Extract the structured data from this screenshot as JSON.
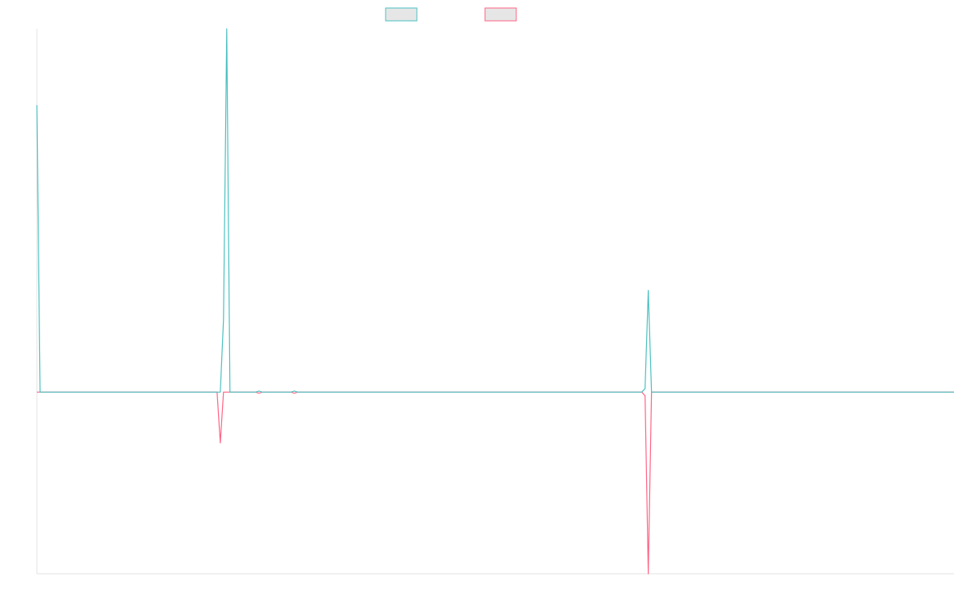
{
  "chart_data": {
    "type": "line",
    "title": "",
    "xlabel": "",
    "ylabel": "",
    "grid": false,
    "legend": "top-center",
    "x": [
      0,
      1,
      2,
      3,
      4,
      5,
      6,
      7,
      8,
      9,
      10,
      11,
      12,
      13,
      14,
      15,
      16,
      17,
      18,
      19,
      20,
      21,
      22,
      23,
      24,
      25,
      26,
      27,
      28,
      29,
      30,
      31,
      32,
      33,
      34,
      35,
      36,
      37,
      38,
      39,
      40,
      41,
      42,
      43,
      44,
      45,
      46,
      47,
      48,
      49,
      50,
      51,
      52,
      53,
      54,
      55,
      56,
      57,
      58,
      59,
      60,
      61,
      62,
      63,
      64,
      65,
      66,
      67,
      68,
      69,
      70,
      71,
      72,
      73,
      74,
      75,
      76,
      77,
      78,
      79,
      80,
      81,
      82,
      83,
      84,
      85,
      86,
      87,
      88,
      89,
      90,
      91,
      92,
      93,
      94,
      95,
      96,
      97,
      98,
      99,
      100,
      101,
      102,
      103,
      104,
      105,
      106,
      107,
      108,
      109,
      110,
      111,
      112,
      113,
      114,
      115,
      116,
      117,
      118,
      119,
      120,
      121,
      122,
      123,
      124,
      125,
      126,
      127,
      128,
      129,
      130,
      131,
      132,
      133,
      134,
      135,
      136,
      137,
      138,
      139,
      140,
      141,
      142,
      143,
      144,
      145,
      146,
      147,
      148,
      149,
      150,
      151,
      152,
      153,
      154,
      155,
      156,
      157,
      158,
      159,
      160,
      161,
      162,
      163,
      164,
      165,
      166,
      167,
      168,
      169,
      170,
      171,
      172,
      173,
      174,
      175,
      176,
      177,
      178,
      179,
      180,
      181,
      182,
      183,
      184,
      185,
      186,
      187,
      188,
      189,
      190,
      191,
      192,
      193,
      194,
      195,
      196,
      197,
      198,
      199,
      200,
      201,
      202,
      203,
      204,
      205,
      206,
      207,
      208,
      209,
      210,
      211,
      212,
      213,
      214,
      215,
      216,
      217,
      218,
      219,
      220,
      221,
      222,
      223,
      224,
      225,
      226,
      227,
      228,
      229,
      230,
      231,
      232,
      233,
      234,
      235,
      236,
      237,
      238,
      239,
      240,
      241,
      242,
      243,
      244,
      245,
      246,
      247,
      248,
      249,
      250,
      251,
      252,
      253,
      254,
      255,
      256,
      257,
      258,
      259,
      260,
      261,
      262,
      263,
      264,
      265,
      266,
      267,
      268,
      269,
      270,
      271,
      272,
      273,
      274,
      275,
      276,
      277,
      278,
      279,
      280,
      281,
      282,
      283,
      284,
      285
    ],
    "xlim": [
      0,
      285
    ],
    "ylim": [
      -100,
      200
    ],
    "series": [
      {
        "color": "#4bc0c0",
        "values": {
          "0": 158,
          "1": 0,
          "57": 0,
          "58": 40,
          "59": 200,
          "60": 0,
          "68": 0,
          "69": 0.6,
          "70": 0,
          "79": 0,
          "80": 0.6,
          "81": 0,
          "188": 0,
          "189": 2,
          "190": 56,
          "191": 0,
          "285": 0
        }
      },
      {
        "color": "#ff6384",
        "values": {
          "0": 0,
          "56": 0,
          "57": -28,
          "58": 0,
          "68": 0,
          "69": -0.6,
          "70": 0,
          "79": 0,
          "80": -0.6,
          "81": 0,
          "188": 0,
          "189": -2,
          "190": -100,
          "191": 0,
          "285": 0
        }
      }
    ]
  }
}
